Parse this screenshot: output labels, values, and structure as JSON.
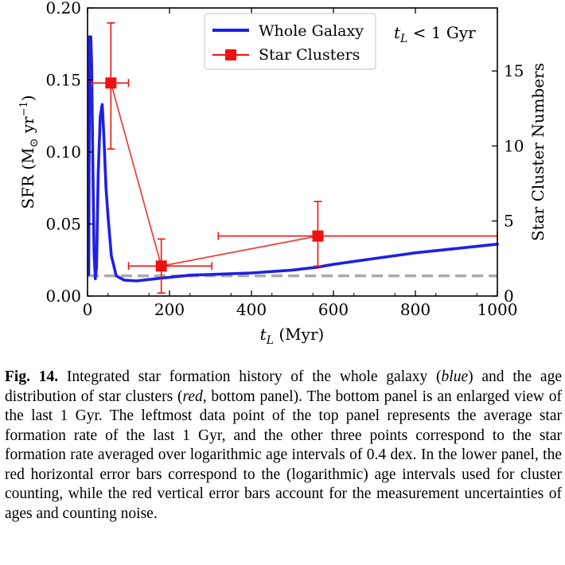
{
  "chart_data": {
    "type": "line",
    "xlabel": "t_L (Myr)",
    "ylabel_left": "SFR (M⊙ yr⁻¹)",
    "ylabel_right": "Star Cluster Numbers",
    "annotation": "t_L < 1 Gyr",
    "xlim": [
      0,
      1000
    ],
    "ylim_left": [
      0,
      0.2
    ],
    "ylim_right": [
      0,
      19.2
    ],
    "x_ticks": [
      0,
      200,
      400,
      600,
      800,
      1000
    ],
    "y_ticks_left": [
      0.0,
      0.05,
      0.1,
      0.15,
      0.2
    ],
    "y_ticks_left_labels": [
      "0.00",
      "0.05",
      "0.10",
      "0.15",
      "0.20"
    ],
    "y_ticks_right": [
      0,
      5,
      10,
      15
    ],
    "legend_position": "top-center",
    "series": [
      {
        "name": "Whole Galaxy",
        "color": "#1f1fe6",
        "axis": "left",
        "x": [
          3,
          5,
          8,
          10,
          13,
          16,
          19,
          22,
          26,
          31,
          36,
          40,
          45,
          50,
          58,
          70,
          90,
          120,
          150,
          200,
          250,
          300,
          400,
          500,
          560,
          600,
          700,
          800,
          900,
          1000
        ],
        "y": [
          0.015,
          0.18,
          0.18,
          0.16,
          0.09,
          0.03,
          0.012,
          0.02,
          0.085,
          0.125,
          0.133,
          0.11,
          0.075,
          0.055,
          0.028,
          0.014,
          0.011,
          0.0105,
          0.0115,
          0.013,
          0.0145,
          0.015,
          0.016,
          0.018,
          0.02,
          0.022,
          0.026,
          0.03,
          0.033,
          0.036
        ]
      },
      {
        "name": "Star Clusters",
        "color": "#ee1111",
        "axis": "right",
        "x": [
          57,
          180,
          562
        ],
        "y": [
          14.2,
          2.0,
          4.0
        ],
        "xerr_low": [
          47,
          80,
          243
        ],
        "xerr_high": [
          43,
          123,
          438
        ],
        "yerr_low": [
          4.4,
          1.8,
          2.0
        ],
        "yerr_high": [
          4.0,
          1.8,
          2.3
        ]
      },
      {
        "name": "",
        "color": "#aaaaaa",
        "axis": "left",
        "style": "dashed",
        "x": [
          0,
          1000
        ],
        "y": [
          0.014,
          0.014
        ]
      }
    ]
  },
  "caption": {
    "label": "Fig. 14.",
    "t1": " Integrated star formation history of the whole galaxy (",
    "blue": "blue",
    "t2": ") and the age distribution of star clusters (",
    "red": "red",
    "t3": ", bottom panel). The bottom panel is an enlarged view of the last 1 Gyr. The leftmost data point of the top panel represents the average star formation rate of the last 1 Gyr, and the other three points correspond to the star formation rate averaged over logarithmic age intervals of 0.4 dex. In the lower panel, the red horizontal error bars correspond to the (logarithmic) age intervals used for cluster counting, while the red vertical error bars account for the measurement uncertainties of ages and counting noise."
  }
}
